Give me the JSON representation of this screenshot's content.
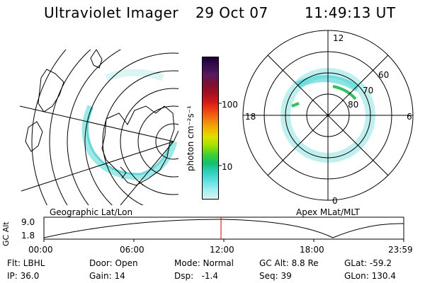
{
  "header": {
    "instrument": "Ultraviolet Imager",
    "date": "29 Oct 07",
    "time": "11:49:13 UT"
  },
  "colorbar": {
    "unit_label": "photon cm⁻²s⁻¹",
    "ticks": [
      "100",
      "10"
    ],
    "stops": [
      "#1a0033",
      "#3a0d4d",
      "#5a1a60",
      "#7a1030",
      "#a01020",
      "#d01818",
      "#f04010",
      "#f07a10",
      "#f0b000",
      "#e0e000",
      "#a0e000",
      "#40d030",
      "#10c070",
      "#30d0c0",
      "#60e0e0",
      "#a0eef0",
      "#d8f4f4"
    ]
  },
  "geo_map": {
    "label": "Geographic Lat/Lon"
  },
  "polar_map": {
    "label": "Apex MLat/MLT",
    "mlt_labels": {
      "top": "12",
      "left": "18",
      "right": "6",
      "bottom": "0"
    },
    "lat_labels": [
      "60",
      "70",
      "80"
    ]
  },
  "altitude_plot": {
    "ylabel": "GC Alt",
    "yticks": [
      "9.0",
      "1.8"
    ],
    "xticks": [
      "00:00",
      "06:00",
      "12:00",
      "18:00",
      "23:59"
    ],
    "marker_color": "#cc0000"
  },
  "info": {
    "flt": "Flt: LBHL",
    "ip": "IP: 36.0",
    "door": "Door: Open",
    "gain": "Gain: 14",
    "mode": "Mode: Normal",
    "dsp": "Dsp:   -1.4",
    "gc_alt": "GC Alt: 8.8 Re",
    "seq": "Seq: 39",
    "glat": "GLat: -59.2",
    "glon": "GLon: 130.4"
  }
}
